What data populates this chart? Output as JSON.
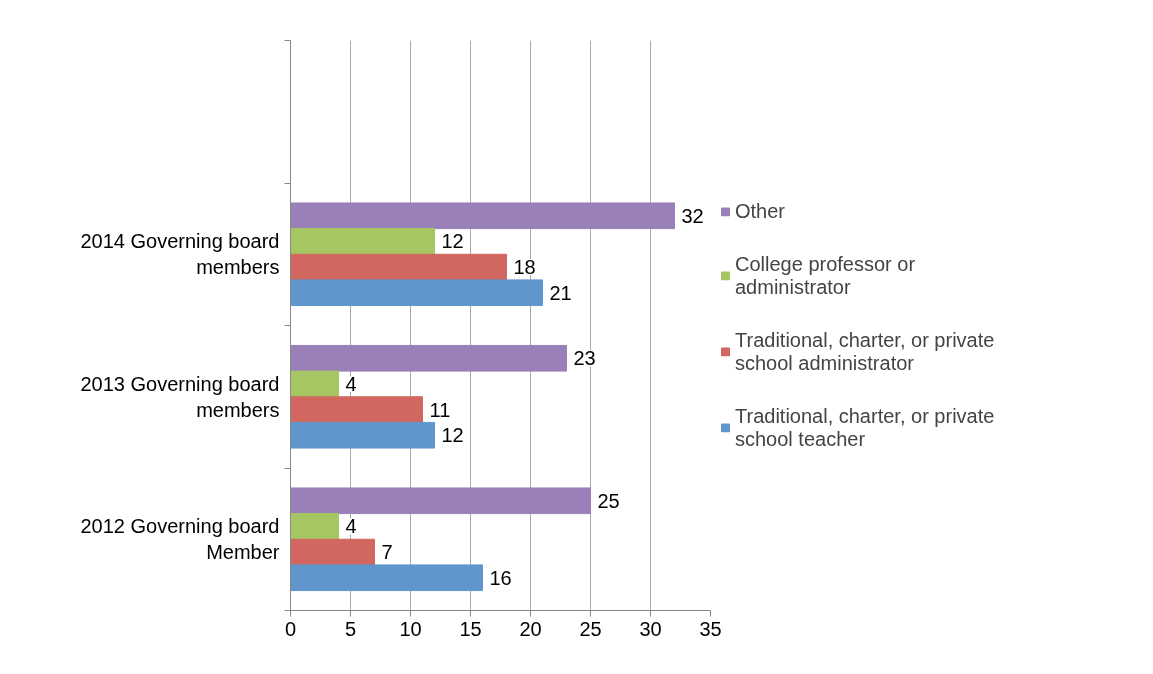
{
  "chart_data": {
    "type": "bar",
    "orientation": "horizontal",
    "categories": [
      null,
      "2014 Governing board members",
      "2013 Governing board members",
      "2012 Governing board Member"
    ],
    "series": [
      {
        "name": "Other",
        "color": "#9a80b8",
        "values": [
          null,
          32,
          23,
          25
        ]
      },
      {
        "name": "College professor or administrator",
        "color": "#a5c663",
        "values": [
          null,
          12,
          4,
          4
        ]
      },
      {
        "name": "Traditional, charter, or private school administrator",
        "color": "#d1675f",
        "values": [
          null,
          18,
          11,
          7
        ]
      },
      {
        "name": "Traditional, charter, or private school teacher",
        "color": "#6096cd",
        "values": [
          null,
          21,
          12,
          16
        ]
      }
    ],
    "xlim": [
      0,
      35
    ],
    "xticks": [
      0,
      5,
      10,
      15,
      20,
      25,
      30,
      35
    ],
    "grid": "x",
    "legend": "right",
    "data_labels": true
  }
}
